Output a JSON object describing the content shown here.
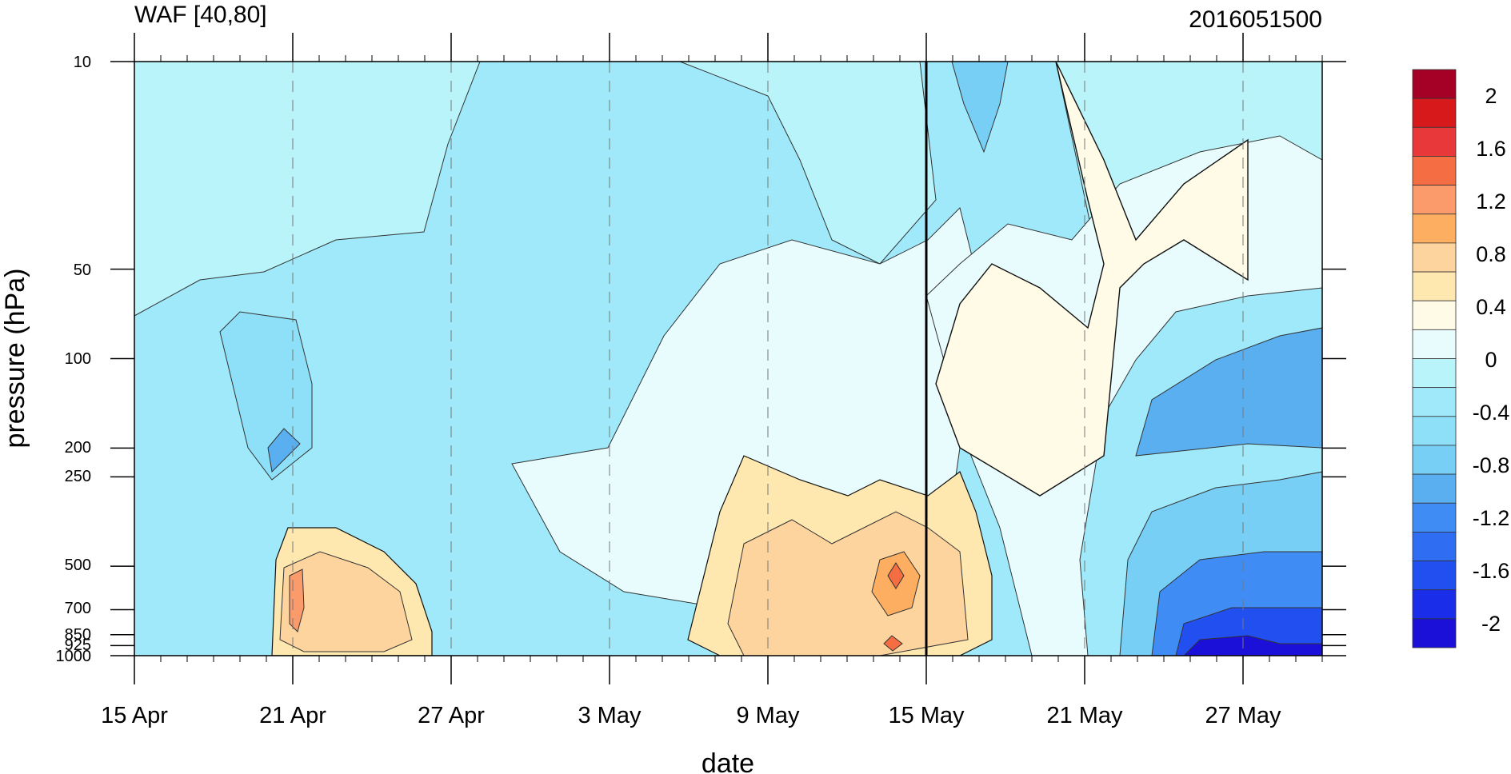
{
  "chart_data": {
    "type": "heatmap",
    "title": "WAF [40,80]",
    "date_label": "2016051500",
    "xlabel": "date",
    "ylabel": "pressure (hPa)",
    "x_range": [
      "15 Apr",
      "30 May"
    ],
    "x_ticks": [
      "15 Apr",
      "21 Apr",
      "27 Apr",
      "3 May",
      "9 May",
      "15 May",
      "21 May",
      "27 May"
    ],
    "y_scale": "log",
    "y_range": [
      1000,
      10
    ],
    "y_ticks": [
      "10",
      "50",
      "100",
      "200",
      "250",
      "500",
      "700",
      "850",
      "925",
      "1000"
    ],
    "marker_line_date": "15 May",
    "colorbar": {
      "labels": [
        "2",
        "1.6",
        "1.2",
        "0.8",
        "0.4",
        "0",
        "-0.4",
        "-0.8",
        "-1.2",
        "-1.6",
        "-2"
      ],
      "colors": [
        "#a50026",
        "#d7191c",
        "#e8383a",
        "#f46d43",
        "#fb9a6a",
        "#fdae61",
        "#fdd49e",
        "#fee8b0",
        "#fffbe6",
        "#e8fcfe",
        "#b9f4fa",
        "#9fe9fa",
        "#8ee0f9",
        "#78cff6",
        "#5aaff0",
        "#3f8cf4",
        "#2f6df3",
        "#2250f0",
        "#1a2de8",
        "#1a10d8"
      ]
    },
    "features": [
      {
        "date": "17 May",
        "pressure": 10,
        "value": -0.8
      },
      {
        "date": "21 Apr",
        "pressure": 100,
        "value": -0.8
      },
      {
        "date": "14 May",
        "pressure": 500,
        "value": 1.2
      },
      {
        "date": "14 May",
        "pressure": 925,
        "value": 1.2
      },
      {
        "date": "21 Apr",
        "pressure": 600,
        "value": 1.0
      },
      {
        "date": "20 May",
        "pressure": 60,
        "value": 0.4
      },
      {
        "date": "28 May",
        "pressure": 100,
        "value": -1.2
      },
      {
        "date": "27 May",
        "pressure": 925,
        "value": -2.0
      },
      {
        "date": "11 May",
        "pressure": 500,
        "value": 0.8
      },
      {
        "date": "20 May",
        "pressure": 300,
        "value": 0.4
      }
    ]
  }
}
